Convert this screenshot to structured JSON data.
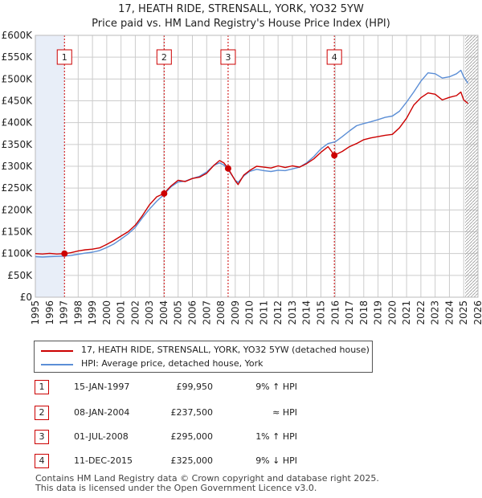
{
  "header": {
    "title": "17, HEATH RIDE, STRENSALL, YORK, YO32 5YW",
    "subtitle": "Price paid vs. HM Land Registry's House Price Index (HPI)"
  },
  "colors": {
    "property": "#cc0000",
    "hpi": "#5b8ed6",
    "shade": "#e8eef8",
    "grid": "#cccccc"
  },
  "chart_data": {
    "type": "line",
    "title": "Price paid vs. HM Land Registry's House Price Index (HPI)",
    "xlim": [
      1995,
      2026
    ],
    "ylim": [
      0,
      600000
    ],
    "x_ticks": [
      "1995",
      "1996",
      "1997",
      "1998",
      "1999",
      "2000",
      "2001",
      "2002",
      "2003",
      "2004",
      "2005",
      "2006",
      "2007",
      "2008",
      "2009",
      "2010",
      "2011",
      "2012",
      "2013",
      "2014",
      "2015",
      "2016",
      "2017",
      "2018",
      "2019",
      "2020",
      "2021",
      "2022",
      "2023",
      "2024",
      "2025",
      "2026"
    ],
    "y_ticks": [
      {
        "value": 0,
        "label": "£0"
      },
      {
        "value": 50000,
        "label": "£50K"
      },
      {
        "value": 100000,
        "label": "£100K"
      },
      {
        "value": 150000,
        "label": "£150K"
      },
      {
        "value": 200000,
        "label": "£200K"
      },
      {
        "value": 250000,
        "label": "£250K"
      },
      {
        "value": 300000,
        "label": "£300K"
      },
      {
        "value": 350000,
        "label": "£350K"
      },
      {
        "value": 400000,
        "label": "£400K"
      },
      {
        "value": 450000,
        "label": "£450K"
      },
      {
        "value": 500000,
        "label": "£500K"
      },
      {
        "value": 550000,
        "label": "£550K"
      },
      {
        "value": 600000,
        "label": "£600K"
      }
    ],
    "shaded_until": 1997.04,
    "hatched_from": 2025.1,
    "series": [
      {
        "name": "17, HEATH RIDE, STRENSALL, YORK, YO32 5YW (detached house)",
        "color": "#cc0000",
        "points": [
          [
            1995.0,
            100000
          ],
          [
            1995.5,
            99000
          ],
          [
            1996.0,
            100500
          ],
          [
            1996.5,
            99000
          ],
          [
            1997.04,
            99950
          ],
          [
            1997.5,
            102000
          ],
          [
            1998.0,
            106000
          ],
          [
            1998.5,
            108500
          ],
          [
            1999.0,
            110000
          ],
          [
            1999.5,
            113000
          ],
          [
            2000.0,
            121000
          ],
          [
            2000.5,
            130000
          ],
          [
            2001.0,
            140000
          ],
          [
            2001.5,
            150000
          ],
          [
            2002.0,
            165000
          ],
          [
            2002.5,
            187000
          ],
          [
            2003.0,
            212000
          ],
          [
            2003.5,
            230000
          ],
          [
            2004.0,
            237500
          ],
          [
            2004.5,
            255000
          ],
          [
            2005.0,
            268000
          ],
          [
            2005.5,
            265000
          ],
          [
            2006.0,
            272000
          ],
          [
            2006.5,
            275000
          ],
          [
            2007.0,
            284000
          ],
          [
            2007.5,
            302000
          ],
          [
            2007.9,
            313000
          ],
          [
            2008.2,
            308000
          ],
          [
            2008.5,
            295000
          ],
          [
            2009.0,
            267000
          ],
          [
            2009.2,
            258000
          ],
          [
            2009.6,
            280000
          ],
          [
            2010.0,
            290000
          ],
          [
            2010.5,
            300000
          ],
          [
            2011.0,
            298000
          ],
          [
            2011.5,
            296000
          ],
          [
            2012.0,
            301000
          ],
          [
            2012.5,
            297000
          ],
          [
            2013.0,
            301000
          ],
          [
            2013.5,
            298000
          ],
          [
            2014.0,
            306000
          ],
          [
            2014.5,
            317000
          ],
          [
            2015.0,
            332000
          ],
          [
            2015.5,
            345000
          ],
          [
            2015.94,
            325000
          ],
          [
            2016.5,
            334000
          ],
          [
            2017.0,
            345000
          ],
          [
            2017.5,
            352000
          ],
          [
            2018.0,
            361000
          ],
          [
            2018.5,
            365000
          ],
          [
            2019.0,
            368000
          ],
          [
            2019.5,
            371000
          ],
          [
            2020.0,
            373000
          ],
          [
            2020.5,
            388000
          ],
          [
            2021.0,
            410000
          ],
          [
            2021.5,
            440000
          ],
          [
            2022.0,
            457000
          ],
          [
            2022.5,
            468000
          ],
          [
            2023.0,
            465000
          ],
          [
            2023.5,
            452000
          ],
          [
            2024.0,
            458000
          ],
          [
            2024.5,
            462000
          ],
          [
            2024.8,
            470000
          ],
          [
            2025.0,
            452000
          ],
          [
            2025.3,
            444000
          ]
        ],
        "sales": [
          {
            "id": "1",
            "x": 1997.04,
            "y": 99950
          },
          {
            "id": "2",
            "x": 2004.02,
            "y": 237500
          },
          {
            "id": "3",
            "x": 2008.5,
            "y": 295000
          },
          {
            "id": "4",
            "x": 2015.94,
            "y": 325000
          }
        ]
      },
      {
        "name": "HPI: Average price, detached house, York",
        "color": "#5b8ed6",
        "points": [
          [
            1995.0,
            93000
          ],
          [
            1995.5,
            92000
          ],
          [
            1996.0,
            93000
          ],
          [
            1996.5,
            93500
          ],
          [
            1997.0,
            94000
          ],
          [
            1997.5,
            95500
          ],
          [
            1998.0,
            98500
          ],
          [
            1998.5,
            101000
          ],
          [
            1999.0,
            103000
          ],
          [
            1999.5,
            107000
          ],
          [
            2000.0,
            114000
          ],
          [
            2000.5,
            122000
          ],
          [
            2001.0,
            133000
          ],
          [
            2001.5,
            145000
          ],
          [
            2002.0,
            160000
          ],
          [
            2002.5,
            182000
          ],
          [
            2003.0,
            202000
          ],
          [
            2003.5,
            220000
          ],
          [
            2004.0,
            235000
          ],
          [
            2004.5,
            253000
          ],
          [
            2005.0,
            264000
          ],
          [
            2005.5,
            266000
          ],
          [
            2006.0,
            272000
          ],
          [
            2006.5,
            277000
          ],
          [
            2007.0,
            287000
          ],
          [
            2007.5,
            302000
          ],
          [
            2007.9,
            308000
          ],
          [
            2008.2,
            303000
          ],
          [
            2008.5,
            292000
          ],
          [
            2009.0,
            268000
          ],
          [
            2009.2,
            263000
          ],
          [
            2009.6,
            278000
          ],
          [
            2010.0,
            288000
          ],
          [
            2010.5,
            293000
          ],
          [
            2011.0,
            290000
          ],
          [
            2011.5,
            288000
          ],
          [
            2012.0,
            291000
          ],
          [
            2012.5,
            290000
          ],
          [
            2013.0,
            294000
          ],
          [
            2013.5,
            298000
          ],
          [
            2014.0,
            308000
          ],
          [
            2014.5,
            322000
          ],
          [
            2015.0,
            340000
          ],
          [
            2015.5,
            352000
          ],
          [
            2016.0,
            356000
          ],
          [
            2016.5,
            368000
          ],
          [
            2017.0,
            381000
          ],
          [
            2017.5,
            393000
          ],
          [
            2018.0,
            398000
          ],
          [
            2018.5,
            402000
          ],
          [
            2019.0,
            407000
          ],
          [
            2019.5,
            412000
          ],
          [
            2020.0,
            415000
          ],
          [
            2020.5,
            426000
          ],
          [
            2021.0,
            447000
          ],
          [
            2021.5,
            470000
          ],
          [
            2022.0,
            495000
          ],
          [
            2022.5,
            514000
          ],
          [
            2023.0,
            512000
          ],
          [
            2023.5,
            502000
          ],
          [
            2024.0,
            505000
          ],
          [
            2024.5,
            512000
          ],
          [
            2024.8,
            520000
          ],
          [
            2025.0,
            505000
          ],
          [
            2025.3,
            490000
          ]
        ]
      }
    ]
  },
  "legend": {
    "property_label": "17, HEATH RIDE, STRENSALL, YORK, YO32 5YW (detached house)",
    "hpi_label": "HPI: Average price, detached house, York"
  },
  "transactions": [
    {
      "id": "1",
      "date": "15-JAN-1997",
      "price": "£99,950",
      "hpi": "9% ↑ HPI"
    },
    {
      "id": "2",
      "date": "08-JAN-2004",
      "price": "£237,500",
      "hpi": "≈ HPI"
    },
    {
      "id": "3",
      "date": "01-JUL-2008",
      "price": "£295,000",
      "hpi": "1% ↑ HPI"
    },
    {
      "id": "4",
      "date": "11-DEC-2015",
      "price": "£325,000",
      "hpi": "9% ↓ HPI"
    }
  ],
  "footer": {
    "line1": "Contains HM Land Registry data © Crown copyright and database right 2025.",
    "line2": "This data is licensed under the Open Government Licence v3.0."
  }
}
